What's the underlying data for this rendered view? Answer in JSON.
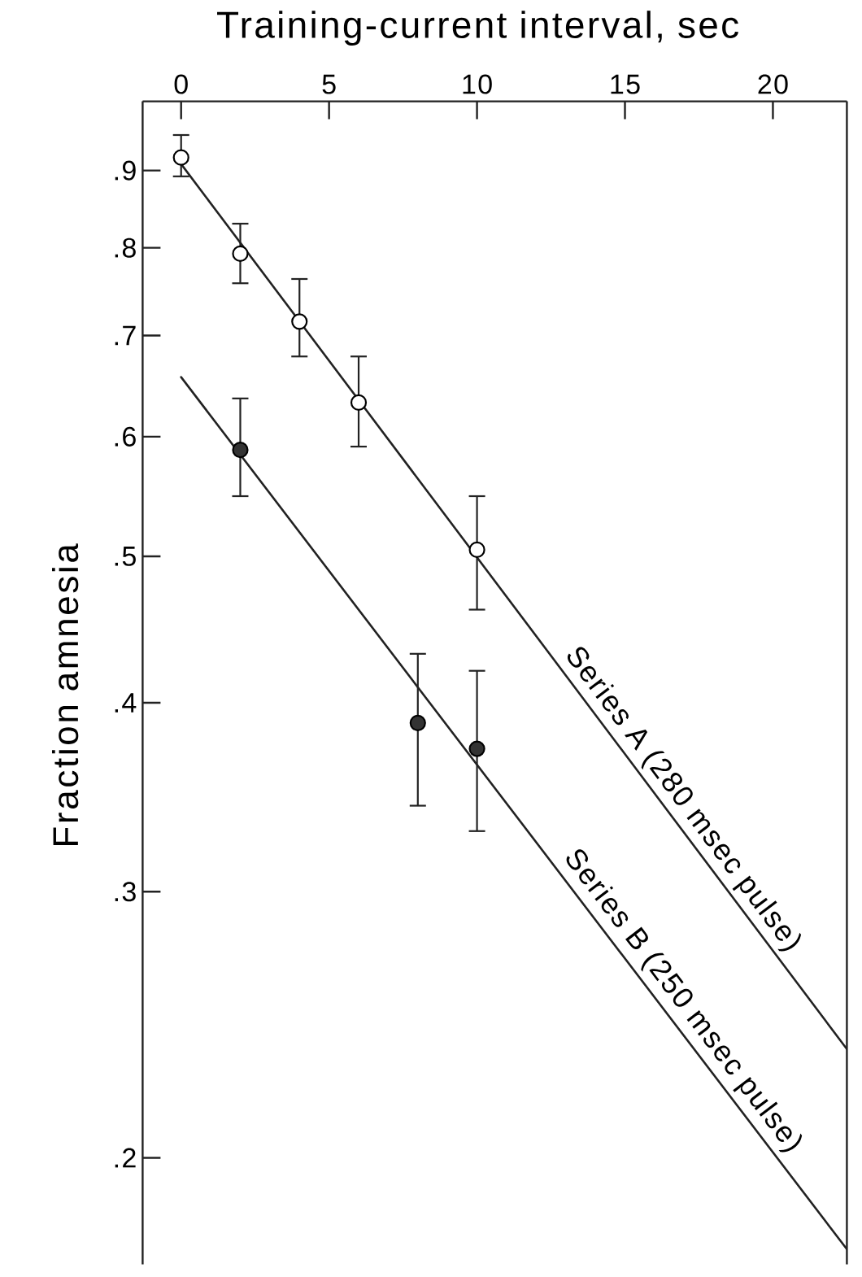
{
  "chart_data": {
    "type": "scatter",
    "xlabel": "Training-current interval, sec",
    "ylabel": "Fraction amnesia",
    "xlim": [
      -1.3,
      22.5
    ],
    "xticks": [
      0,
      5,
      10,
      15,
      20
    ],
    "ylim": [
      0.17,
      1.0
    ],
    "yticks": [
      {
        "value": 0.2,
        "label": ".2"
      },
      {
        "value": 0.3,
        "label": ".3"
      },
      {
        "value": 0.4,
        "label": ".4"
      },
      {
        "value": 0.5,
        "label": ".5"
      },
      {
        "value": 0.6,
        "label": ".6"
      },
      {
        "value": 0.7,
        "label": ".7"
      },
      {
        "value": 0.8,
        "label": ".8"
      },
      {
        "value": 0.9,
        "label": ".9"
      }
    ],
    "log": "y",
    "series": [
      {
        "type": "line",
        "color": "#222222",
        "marker": "none",
        "line_style": "solid",
        "x": [
          0,
          22.5
        ],
        "values": [
          0.909,
          0.236
        ]
      },
      {
        "type": "line",
        "color": "#222222",
        "marker": "none",
        "line_style": "solid",
        "x": [
          0,
          22.5
        ],
        "values": [
          0.657,
          0.174
        ]
      },
      {
        "color": "#ffffff",
        "marker": "circle",
        "x": [
          0,
          2,
          4,
          6,
          10
        ],
        "values": [
          0.918,
          0.793,
          0.715,
          0.632,
          0.505
        ],
        "errors": [
          [
            0.892,
            0.95
          ],
          [
            0.758,
            0.83
          ],
          [
            0.678,
            0.763
          ],
          [
            0.591,
            0.678
          ],
          [
            0.461,
            0.548
          ]
        ]
      },
      {
        "color": "#333333",
        "marker": "circle",
        "x": [
          2,
          8,
          10
        ],
        "values": [
          0.588,
          0.388,
          0.373
        ],
        "errors": [
          [
            0.548,
            0.636
          ],
          [
            0.342,
            0.431
          ],
          [
            0.329,
            0.42
          ]
        ]
      }
    ],
    "annotations": [
      {
        "text": "Series A (280 msec pulse)",
        "x": 16.5,
        "y": 0.34
      },
      {
        "text": "Series B (250 msec pulse)",
        "x": 16.5,
        "y": 0.25
      }
    ]
  }
}
